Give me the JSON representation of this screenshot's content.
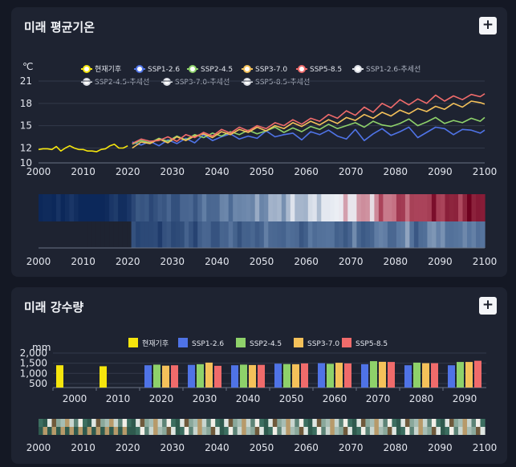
{
  "cards": [
    {
      "title": "미래 평균기온",
      "button": "+"
    },
    {
      "title": "미래 강수량",
      "button": "+"
    }
  ],
  "colors": {
    "observed": "#f5e50d",
    "ssp126": "#4f73e6",
    "ssp245": "#8ed16a",
    "ssp370": "#f4c15a",
    "ssp585": "#f06b6b",
    "trend": "#d9dce3"
  },
  "chart_data": [
    {
      "type": "line",
      "title": "미래 평균기온",
      "ylabel": "℃",
      "ylim": [
        10,
        21
      ],
      "yticks": [
        10,
        12,
        15,
        18,
        21
      ],
      "xlim": [
        2000,
        2100
      ],
      "xticks": [
        2000,
        2010,
        2020,
        2030,
        2040,
        2050,
        2060,
        2070,
        2080,
        2090,
        2100
      ],
      "legend": [
        "현재기후",
        "SSP1-2.6",
        "SSP2-4.5",
        "SSP3-7.0",
        "SSP5-8.5",
        "SSP1-2.6-추세선",
        "SSP2-4.5-추세선",
        "SSP3-7.0-추세선",
        "SSP5-8.5-추세선"
      ],
      "series": [
        {
          "name": "현재기후",
          "x": [
            2000,
            2001,
            2002,
            2003,
            2004,
            2005,
            2006,
            2007,
            2008,
            2009,
            2010,
            2011,
            2012,
            2013,
            2014,
            2015,
            2016,
            2017,
            2018,
            2019,
            2020
          ],
          "values": [
            11.8,
            11.9,
            11.9,
            11.8,
            12.2,
            11.6,
            12.0,
            12.3,
            12.0,
            11.8,
            11.8,
            11.6,
            11.6,
            11.5,
            11.8,
            11.9,
            12.3,
            12.5,
            12.0,
            12.0,
            12.3
          ]
        },
        {
          "name": "SSP1-2.6",
          "x": [
            2021,
            2023,
            2025,
            2027,
            2029,
            2031,
            2033,
            2035,
            2037,
            2039,
            2041,
            2043,
            2045,
            2047,
            2049,
            2051,
            2053,
            2055,
            2057,
            2059,
            2061,
            2063,
            2065,
            2067,
            2069,
            2071,
            2073,
            2075,
            2077,
            2079,
            2081,
            2083,
            2085,
            2087,
            2089,
            2091,
            2093,
            2095,
            2097,
            2099,
            2100
          ],
          "values": [
            12.8,
            12.4,
            12.9,
            12.3,
            13.1,
            12.6,
            13.3,
            12.7,
            13.8,
            13.0,
            13.5,
            13.9,
            13.2,
            13.6,
            13.3,
            14.3,
            13.5,
            13.8,
            14.0,
            13.1,
            14.2,
            13.8,
            14.4,
            13.6,
            13.2,
            14.5,
            13.0,
            13.9,
            14.6,
            13.7,
            14.2,
            14.8,
            13.4,
            14.1,
            14.8,
            14.6,
            13.8,
            14.5,
            14.4,
            14.0,
            14.4
          ]
        },
        {
          "name": "SSP2-4.5",
          "x": [
            2021,
            2023,
            2025,
            2027,
            2029,
            2031,
            2033,
            2035,
            2037,
            2039,
            2041,
            2043,
            2045,
            2047,
            2049,
            2051,
            2053,
            2055,
            2057,
            2059,
            2061,
            2063,
            2065,
            2067,
            2069,
            2071,
            2073,
            2075,
            2077,
            2079,
            2081,
            2083,
            2085,
            2087,
            2089,
            2091,
            2093,
            2095,
            2097,
            2099,
            2100
          ],
          "values": [
            12.5,
            13.0,
            12.7,
            13.3,
            12.9,
            13.6,
            13.1,
            13.8,
            13.4,
            14.0,
            13.6,
            14.2,
            13.8,
            14.4,
            13.9,
            14.3,
            14.8,
            14.1,
            14.7,
            14.2,
            14.9,
            14.5,
            15.2,
            14.6,
            15.0,
            15.4,
            14.8,
            15.6,
            15.1,
            14.9,
            15.3,
            15.9,
            15.0,
            15.5,
            16.1,
            15.3,
            15.7,
            15.4,
            16.0,
            15.6,
            16.1
          ]
        },
        {
          "name": "SSP3-7.0",
          "x": [
            2021,
            2023,
            2025,
            2027,
            2029,
            2031,
            2033,
            2035,
            2037,
            2039,
            2041,
            2043,
            2045,
            2047,
            2049,
            2051,
            2053,
            2055,
            2057,
            2059,
            2061,
            2063,
            2065,
            2067,
            2069,
            2071,
            2073,
            2075,
            2077,
            2079,
            2081,
            2083,
            2085,
            2087,
            2089,
            2091,
            2093,
            2095,
            2097,
            2099,
            2100
          ],
          "values": [
            12.0,
            12.8,
            12.6,
            13.2,
            12.7,
            13.5,
            13.0,
            13.6,
            13.9,
            13.4,
            14.2,
            13.8,
            14.5,
            14.1,
            14.8,
            14.3,
            15.0,
            14.6,
            15.4,
            14.9,
            15.6,
            15.1,
            15.8,
            15.3,
            16.1,
            15.7,
            16.5,
            16.0,
            16.8,
            16.3,
            17.1,
            16.6,
            17.3,
            16.9,
            17.6,
            17.2,
            18.0,
            17.5,
            18.3,
            18.1,
            17.9
          ]
        },
        {
          "name": "SSP5-8.5",
          "x": [
            2021,
            2023,
            2025,
            2027,
            2029,
            2031,
            2033,
            2035,
            2037,
            2039,
            2041,
            2043,
            2045,
            2047,
            2049,
            2051,
            2053,
            2055,
            2057,
            2059,
            2061,
            2063,
            2065,
            2067,
            2069,
            2071,
            2073,
            2075,
            2077,
            2079,
            2081,
            2083,
            2085,
            2087,
            2089,
            2091,
            2093,
            2095,
            2097,
            2099,
            2100
          ],
          "values": [
            12.6,
            13.2,
            12.9,
            13.0,
            13.5,
            12.9,
            13.8,
            13.4,
            14.1,
            13.6,
            14.5,
            14.0,
            14.8,
            14.3,
            15.0,
            14.6,
            15.4,
            15.0,
            15.8,
            15.2,
            16.0,
            15.6,
            16.5,
            16.0,
            17.0,
            16.4,
            17.5,
            16.8,
            18.0,
            17.4,
            18.5,
            17.8,
            18.6,
            18.0,
            19.1,
            18.3,
            19.0,
            18.5,
            19.2,
            18.9,
            19.3
          ]
        }
      ]
    },
    {
      "type": "bar",
      "title": "미래 강수량",
      "ylabel": "mm",
      "ylim": [
        0,
        2000
      ],
      "yticks": [
        500,
        1000,
        1500,
        2000
      ],
      "ytick_labels": [
        "500",
        "1,000",
        "1,500",
        "2,000"
      ],
      "categories": [
        "2000",
        "2010",
        "2020",
        "2030",
        "2040",
        "2050",
        "2060",
        "2070",
        "2080",
        "2090"
      ],
      "legend": [
        "현재기후",
        "SSP1-2.6",
        "SSP2-4.5",
        "SSP3-7.0",
        "SSP5-8.5"
      ],
      "series": [
        {
          "name": "현재기후",
          "values": [
            1400,
            1350,
            null,
            null,
            null,
            null,
            null,
            null,
            null,
            null
          ]
        },
        {
          "name": "SSP1-2.6",
          "values": [
            null,
            null,
            1400,
            1420,
            1400,
            1480,
            1500,
            1450,
            1400,
            1400
          ]
        },
        {
          "name": "SSP2-4.5",
          "values": [
            null,
            null,
            1430,
            1450,
            1430,
            1460,
            1470,
            1600,
            1530,
            1560
          ]
        },
        {
          "name": "SSP3-7.0",
          "values": [
            null,
            null,
            1380,
            1530,
            1410,
            1450,
            1520,
            1570,
            1500,
            1560
          ]
        },
        {
          "name": "SSP5-8.5",
          "values": [
            null,
            null,
            1400,
            1370,
            1420,
            1490,
            1490,
            1560,
            1500,
            1620
          ]
        }
      ]
    }
  ],
  "strip_axis": {
    "xlim": [
      2000,
      2100
    ],
    "xticks": [
      2000,
      2010,
      2020,
      2030,
      2040,
      2050,
      2060,
      2070,
      2080,
      2090,
      2100
    ]
  }
}
